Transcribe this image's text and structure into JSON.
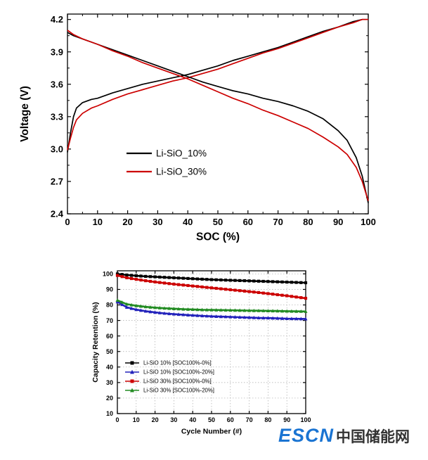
{
  "logo": {
    "escn": "ESCN",
    "cn": "中国储能网",
    "escn_color": "#1a74d2",
    "cn_color": "#333333"
  },
  "chart_data": [
    {
      "type": "line",
      "title": "",
      "xlabel": "SOC (%)",
      "ylabel": "Voltage (V)",
      "xlim": [
        0,
        100
      ],
      "ylim": [
        2.4,
        4.25
      ],
      "xticks": [
        0,
        10,
        20,
        30,
        40,
        50,
        60,
        70,
        80,
        90,
        100
      ],
      "yticks": [
        2.4,
        2.7,
        3.0,
        3.3,
        3.6,
        3.9,
        4.2
      ],
      "grid": false,
      "legend_position": "inside-lower-left",
      "legend": [
        {
          "label": "Li-SiO_10%",
          "color": "#000000"
        },
        {
          "label": "Li-SiO_30%",
          "color": "#cc0000"
        }
      ],
      "series": [
        {
          "name": "Li-SiO_10% charge",
          "color": "#000000",
          "x": [
            0,
            1,
            2,
            3,
            5,
            8,
            10,
            15,
            20,
            25,
            30,
            35,
            40,
            45,
            50,
            55,
            60,
            65,
            70,
            75,
            80,
            85,
            90,
            95,
            98,
            100
          ],
          "y": [
            2.97,
            3.15,
            3.3,
            3.38,
            3.43,
            3.46,
            3.47,
            3.52,
            3.56,
            3.6,
            3.63,
            3.66,
            3.69,
            3.73,
            3.77,
            3.82,
            3.86,
            3.9,
            3.94,
            3.99,
            4.04,
            4.09,
            4.13,
            4.18,
            4.2,
            4.2
          ]
        },
        {
          "name": "Li-SiO_30% charge",
          "color": "#cc0000",
          "x": [
            0,
            1,
            2,
            3,
            5,
            8,
            10,
            15,
            20,
            25,
            30,
            35,
            40,
            45,
            50,
            55,
            60,
            65,
            70,
            75,
            80,
            85,
            90,
            95,
            98,
            100
          ],
          "y": [
            2.99,
            3.1,
            3.2,
            3.27,
            3.33,
            3.38,
            3.4,
            3.46,
            3.51,
            3.55,
            3.59,
            3.63,
            3.66,
            3.7,
            3.74,
            3.79,
            3.84,
            3.89,
            3.93,
            3.98,
            4.03,
            4.08,
            4.13,
            4.17,
            4.2,
            4.2
          ]
        },
        {
          "name": "Li-SiO_10% discharge",
          "color": "#000000",
          "x": [
            0,
            2,
            5,
            10,
            15,
            20,
            25,
            30,
            35,
            40,
            45,
            50,
            55,
            60,
            65,
            70,
            75,
            80,
            85,
            90,
            93,
            96,
            98,
            100
          ],
          "y": [
            4.08,
            4.05,
            4.02,
            3.97,
            3.92,
            3.87,
            3.82,
            3.77,
            3.72,
            3.67,
            3.62,
            3.58,
            3.54,
            3.51,
            3.47,
            3.44,
            3.4,
            3.35,
            3.28,
            3.17,
            3.08,
            2.92,
            2.75,
            2.5
          ]
        },
        {
          "name": "Li-SiO_30% discharge",
          "color": "#cc0000",
          "x": [
            0,
            2,
            5,
            10,
            15,
            20,
            25,
            30,
            35,
            40,
            45,
            50,
            55,
            60,
            65,
            70,
            75,
            80,
            85,
            90,
            93,
            96,
            98,
            100
          ],
          "y": [
            4.1,
            4.06,
            4.02,
            3.97,
            3.91,
            3.86,
            3.8,
            3.75,
            3.7,
            3.65,
            3.59,
            3.53,
            3.47,
            3.42,
            3.36,
            3.31,
            3.25,
            3.19,
            3.11,
            3.02,
            2.95,
            2.83,
            2.7,
            2.52
          ]
        }
      ]
    },
    {
      "type": "scatter",
      "title": "",
      "xlabel": "Cycle Number (#)",
      "ylabel": "Capacity Retention (%)",
      "xlim": [
        0,
        100
      ],
      "ylim": [
        10,
        102
      ],
      "xticks": [
        0,
        10,
        20,
        30,
        40,
        50,
        60,
        70,
        80,
        90,
        100
      ],
      "yticks": [
        10,
        20,
        30,
        40,
        50,
        60,
        70,
        80,
        90,
        100
      ],
      "grid": true,
      "legend_position": "inside-lower-left",
      "legend": [
        {
          "label": "Li-SiO 10% [SOC100%-0%]",
          "color": "#000000",
          "marker": "square"
        },
        {
          "label": "Li-SiO 10% [SOC100%-20%]",
          "color": "#2222bb",
          "marker": "triangle"
        },
        {
          "label": "Li-SiO 30% [SOC100%-0%]",
          "color": "#cc0000",
          "marker": "square"
        },
        {
          "label": "Li-SiO 30% [SOC100%-20%]",
          "color": "#228b22",
          "marker": "triangle"
        }
      ],
      "series": [
        {
          "name": "Li-SiO 10% [SOC100%-0%]",
          "color": "#000000",
          "marker": "square",
          "x": [
            0,
            5,
            10,
            15,
            20,
            25,
            30,
            35,
            40,
            45,
            50,
            55,
            60,
            65,
            70,
            75,
            80,
            85,
            90,
            95,
            100
          ],
          "y": [
            100,
            99.3,
            98.8,
            98.4,
            98.1,
            97.8,
            97.5,
            97.2,
            96.9,
            96.6,
            96.3,
            96.1,
            95.9,
            95.7,
            95.5,
            95.3,
            95.1,
            94.9,
            94.7,
            94.5,
            94.3
          ]
        },
        {
          "name": "Li-SiO 30% [SOC100%-0%]",
          "color": "#cc0000",
          "marker": "square",
          "x": [
            0,
            5,
            10,
            15,
            20,
            25,
            30,
            35,
            40,
            45,
            50,
            55,
            60,
            65,
            70,
            75,
            80,
            85,
            90,
            95,
            100
          ],
          "y": [
            99,
            97.5,
            96.5,
            95.6,
            94.8,
            94.1,
            93.4,
            92.8,
            92.2,
            91.6,
            91.0,
            90.4,
            89.8,
            89.2,
            88.6,
            88.0,
            87.3,
            86.6,
            85.9,
            85.1,
            84.3
          ]
        },
        {
          "name": "Li-SiO 10% [SOC100%-20%]",
          "color": "#2222bb",
          "marker": "triangle",
          "x": [
            0,
            5,
            10,
            15,
            20,
            25,
            30,
            35,
            40,
            45,
            50,
            55,
            60,
            65,
            70,
            75,
            80,
            85,
            90,
            95,
            100
          ],
          "y": [
            82,
            78.5,
            77.0,
            76.0,
            75.2,
            74.6,
            74.1,
            73.7,
            73.3,
            73.0,
            72.7,
            72.5,
            72.3,
            72.1,
            71.9,
            71.7,
            71.6,
            71.4,
            71.2,
            71.1,
            71.0
          ]
        },
        {
          "name": "Li-SiO 30% [SOC100%-20%]",
          "color": "#228b22",
          "marker": "triangle",
          "x": [
            0,
            5,
            10,
            15,
            20,
            25,
            30,
            35,
            40,
            45,
            50,
            55,
            60,
            65,
            70,
            75,
            80,
            85,
            90,
            95,
            100
          ],
          "y": [
            83,
            80.5,
            79.5,
            78.8,
            78.3,
            77.9,
            77.6,
            77.3,
            77.1,
            76.9,
            76.8,
            76.7,
            76.6,
            76.5,
            76.4,
            76.3,
            76.2,
            76.1,
            76.0,
            75.9,
            75.8
          ]
        }
      ]
    }
  ]
}
